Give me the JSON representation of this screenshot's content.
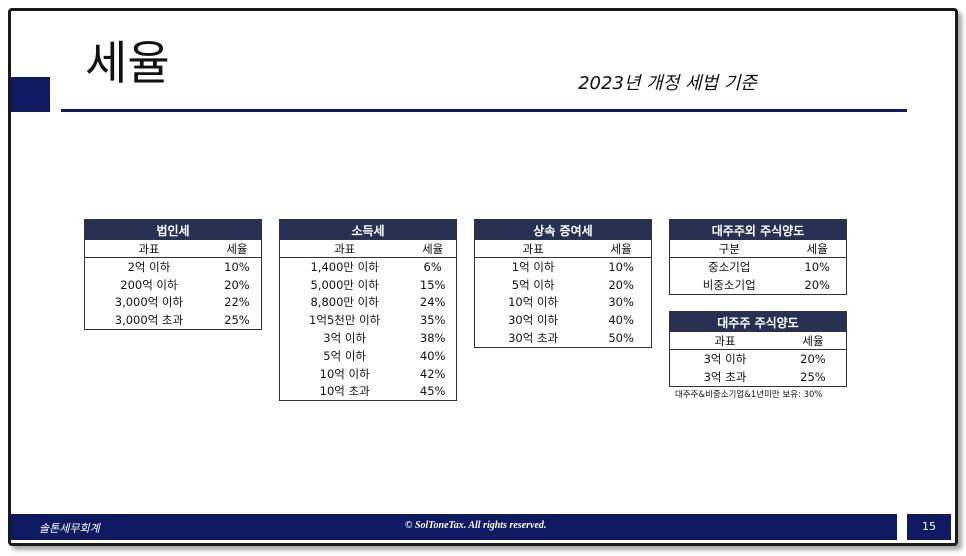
{
  "title": "세율",
  "subtitle": "2023년 개정 세법 기준",
  "tables": [
    {
      "caption": "법인세",
      "headers": [
        "과표",
        "세율"
      ],
      "rows": [
        [
          "2억 이하",
          "10%"
        ],
        [
          "200억 이하",
          "20%"
        ],
        [
          "3,000억 이하",
          "22%"
        ],
        [
          "3,000억 초과",
          "25%"
        ]
      ]
    },
    {
      "caption": "소득세",
      "headers": [
        "과표",
        "세율"
      ],
      "rows": [
        [
          "1,400만 이하",
          "6%"
        ],
        [
          "5,000만 이하",
          "15%"
        ],
        [
          "8,800만 이하",
          "24%"
        ],
        [
          "1억5천만 이하",
          "35%"
        ],
        [
          "3억 이하",
          "38%"
        ],
        [
          "5억 이하",
          "40%"
        ],
        [
          "10억 이하",
          "42%"
        ],
        [
          "10억 초과",
          "45%"
        ]
      ]
    },
    {
      "caption": "상속 증여세",
      "headers": [
        "과표",
        "세율"
      ],
      "rows": [
        [
          "1억 이하",
          "10%"
        ],
        [
          "5억 이하",
          "20%"
        ],
        [
          "10억 이하",
          "30%"
        ],
        [
          "30억 이하",
          "40%"
        ],
        [
          "30억 초과",
          "50%"
        ]
      ]
    },
    {
      "caption": "대주주외 주식양도",
      "headers": [
        "구분",
        "세율"
      ],
      "rows": [
        [
          "중소기업",
          "10%"
        ],
        [
          "비중소기업",
          "20%"
        ]
      ]
    },
    {
      "caption": "대주주 주식양도",
      "headers": [
        "과표",
        "세율"
      ],
      "rows": [
        [
          "3억 이하",
          "20%"
        ],
        [
          "3억 초과",
          "25%"
        ]
      ]
    }
  ],
  "note": "대주주&비중소기업&1년미만 보유: 30%",
  "footer": {
    "company": "솔톤세무회계",
    "copyright": "© SolToneTax. All rights reserved.",
    "page_number": "15"
  },
  "colors": {
    "navy": "#0f1a63",
    "table_header": "#283154"
  }
}
